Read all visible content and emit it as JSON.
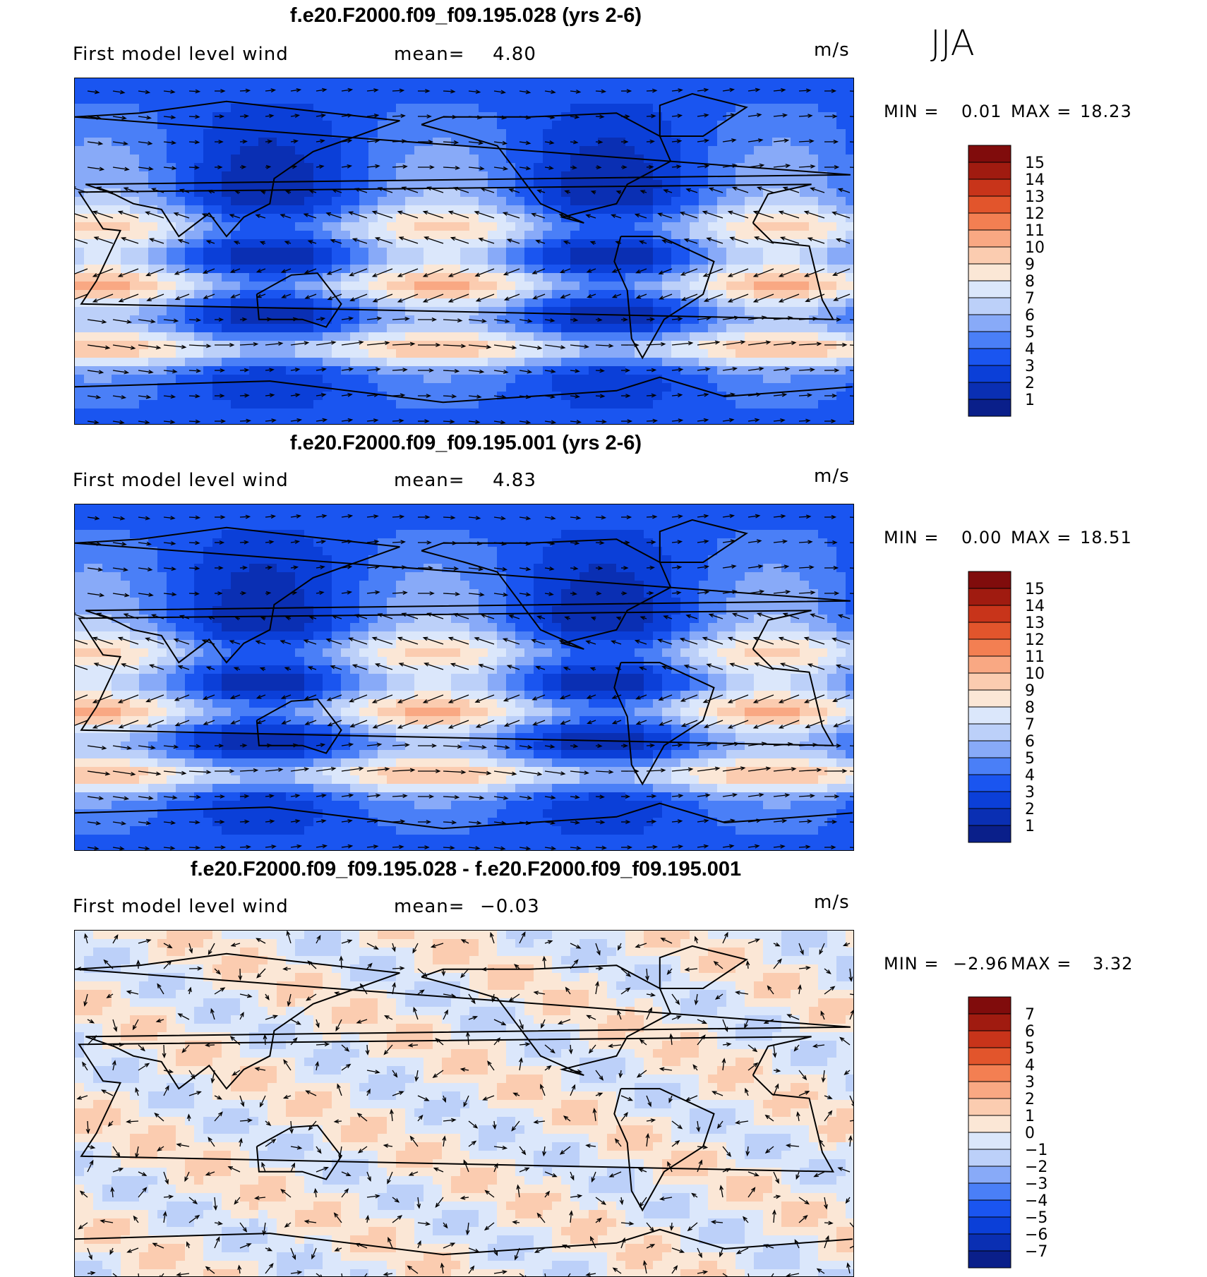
{
  "season": "JJA",
  "colors": {
    "abs": [
      "#0a1f8a",
      "#0a2fb3",
      "#0b3fd8",
      "#1a55f0",
      "#4a7ff7",
      "#88aaf8",
      "#bcd0f9",
      "#dbe7fb",
      "#fbe7d6",
      "#fbccb0",
      "#f9a883",
      "#f37f52",
      "#e2552c",
      "#c8341a",
      "#a01b10",
      "#800c0c"
    ],
    "diff": [
      "#0a1f8a",
      "#0a2fb3",
      "#0b3fd8",
      "#1a55f0",
      "#4a7ff7",
      "#88aaf8",
      "#bcd0f9",
      "#dbe7fb",
      "#fbe7d6",
      "#fbccb0",
      "#f9a883",
      "#f37f52",
      "#e2552c",
      "#c8341a",
      "#a01b10",
      "#800c0c"
    ],
    "land": "#000000"
  },
  "panels": [
    {
      "title": "f.e20.F2000.f09_f09.195.028 (yrs 2-6)",
      "label": "First model level wind",
      "mean_label": "mean=",
      "mean": "4.80",
      "units": "m/s",
      "min_label": "MIN =",
      "min": "0.01",
      "max_label": "MAX =",
      "max": "18.23"
    },
    {
      "title": "f.e20.F2000.f09_f09.195.001 (yrs 2-6)",
      "label": "First model level wind",
      "mean_label": "mean=",
      "mean": "4.83",
      "units": "m/s",
      "min_label": "MIN =",
      "min": "0.00",
      "max_label": "MAX =",
      "max": "18.51"
    },
    {
      "title": "f.e20.F2000.f09_f09.195.028 - f.e20.F2000.f09_f09.195.001",
      "label": "First model level wind",
      "mean_label": "mean=",
      "mean": "−0.03",
      "units": "m/s",
      "min_label": "MIN =",
      "min": "−2.96",
      "max_label": "MAX =",
      "max": "3.32"
    }
  ],
  "chart_data": [
    {
      "type": "heatmap",
      "title": "f.e20.F2000.f09_f09.195.028 (yrs 2-6)",
      "variable": "First model level wind",
      "units": "m/s",
      "mean": 4.8,
      "min": 0.01,
      "max": 18.23,
      "colorbar_levels": [
        "15",
        "14",
        "13",
        "12",
        "11",
        "10",
        "9",
        "8",
        "7",
        "6",
        "5",
        "4",
        "3",
        "2",
        "1"
      ]
    },
    {
      "type": "heatmap",
      "title": "f.e20.F2000.f09_f09.195.001 (yrs 2-6)",
      "variable": "First model level wind",
      "units": "m/s",
      "mean": 4.83,
      "min": 0.0,
      "max": 18.51,
      "colorbar_levels": [
        "15",
        "14",
        "13",
        "12",
        "11",
        "10",
        "9",
        "8",
        "7",
        "6",
        "5",
        "4",
        "3",
        "2",
        "1"
      ]
    },
    {
      "type": "heatmap",
      "title": "f.e20.F2000.f09_f09.195.028 - f.e20.F2000.f09_f09.195.001",
      "variable": "First model level wind",
      "units": "m/s",
      "mean": -0.03,
      "min": -2.96,
      "max": 3.32,
      "colorbar_levels": [
        "7",
        "6",
        "5",
        "4",
        "3",
        "2",
        "1",
        "0",
        "−1",
        "−2",
        "−3",
        "−4",
        "−5",
        "−6",
        "−7"
      ]
    }
  ]
}
